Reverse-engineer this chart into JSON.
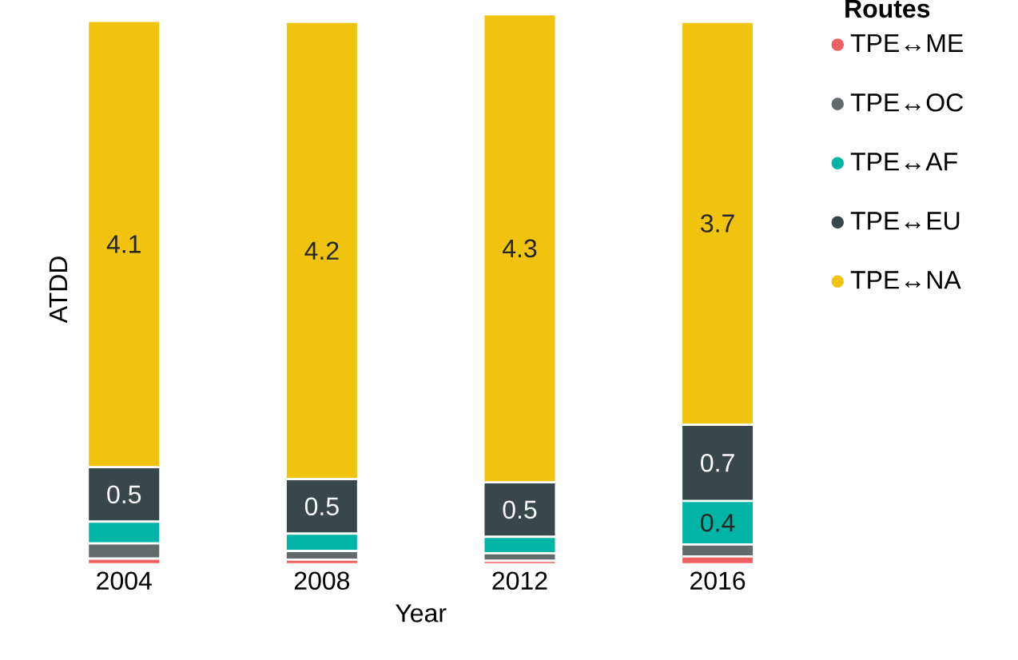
{
  "chart_data": {
    "type": "bar",
    "stacked": true,
    "xlabel": "Year",
    "ylabel": "ATDD",
    "legend_title": "Routes",
    "legend": "right",
    "categories": [
      "2004",
      "2008",
      "2012",
      "2016"
    ],
    "series": [
      {
        "name": "TPE↔ME",
        "color": "#f06060",
        "values": [
          0.05,
          0.04,
          0.03,
          0.07
        ]
      },
      {
        "name": "TPE↔OC",
        "color": "#636a6c",
        "values": [
          0.14,
          0.08,
          0.07,
          0.11
        ]
      },
      {
        "name": "TPE↔AF",
        "color": "#00b5a5",
        "values": [
          0.2,
          0.16,
          0.15,
          0.4
        ],
        "value_labels": [
          null,
          null,
          null,
          "0.4"
        ]
      },
      {
        "name": "TPE↔EU",
        "color": "#37474a",
        "values": [
          0.5,
          0.5,
          0.5,
          0.7
        ],
        "value_labels": [
          "0.5",
          "0.5",
          "0.5",
          "0.7"
        ]
      },
      {
        "name": "TPE↔NA",
        "color": "#f0c30f",
        "values": [
          4.1,
          4.2,
          4.3,
          3.7
        ],
        "value_labels": [
          "4.1",
          "4.2",
          "4.3",
          "3.7"
        ]
      }
    ]
  }
}
